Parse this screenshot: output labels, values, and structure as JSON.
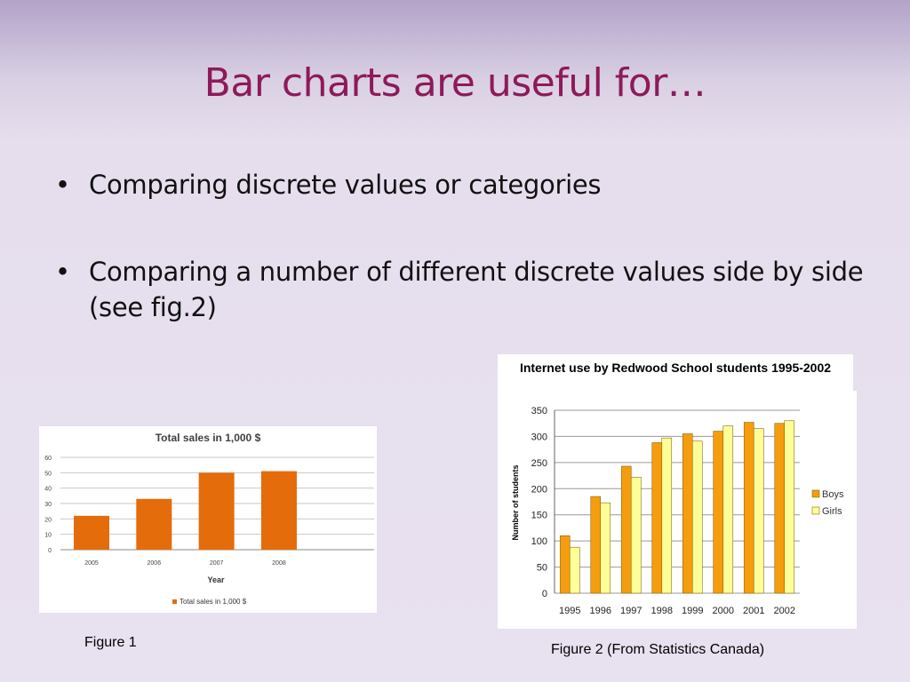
{
  "slide": {
    "title": "Bar charts are useful for…",
    "bullets": [
      "Comparing discrete values or categories",
      "Comparing a number of different discrete values side by side (see fig.2)"
    ],
    "bullet_symbol": "•",
    "figure1_caption": "Figure 1",
    "figure2_caption": "Figure 2 (From Statistics Canada)"
  },
  "chart_data": [
    {
      "type": "bar",
      "title": "Total sales in 1,000 $",
      "xlabel": "Year",
      "ylabel": "",
      "categories": [
        "2005",
        "2006",
        "2007",
        "2008"
      ],
      "series": [
        {
          "name": "Total sales in 1,000 $",
          "values": [
            22,
            33,
            50,
            51
          ],
          "color": "#e46c0a"
        }
      ],
      "ylim": [
        0,
        60
      ],
      "yticks": [
        0,
        10,
        20,
        30,
        40,
        50,
        60
      ],
      "grid": true,
      "legend": "bottom"
    },
    {
      "type": "bar",
      "title": "Internet use by Redwood School students 1995-2002",
      "xlabel": "",
      "ylabel": "Number of students",
      "categories": [
        "1995",
        "1996",
        "1997",
        "1998",
        "1999",
        "2000",
        "2001",
        "2002"
      ],
      "series": [
        {
          "name": "Boys",
          "values": [
            110,
            185,
            243,
            288,
            305,
            310,
            327,
            325
          ],
          "color": "#f59d0f"
        },
        {
          "name": "Girls",
          "values": [
            88,
            173,
            222,
            297,
            291,
            320,
            315,
            330
          ],
          "color": "#ffff99"
        }
      ],
      "ylim": [
        0,
        350
      ],
      "yticks": [
        0,
        50,
        100,
        150,
        200,
        250,
        300,
        350
      ],
      "grid": true,
      "legend": "right"
    }
  ]
}
